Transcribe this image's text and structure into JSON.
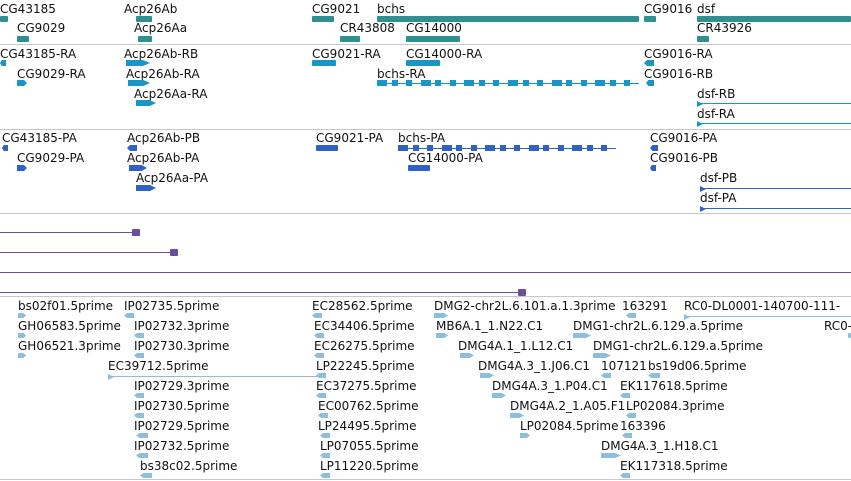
{
  "colors": {
    "gene": "#2f8f91",
    "mrna": "#1a96c6",
    "protein": "#2f62c6",
    "cds_track": "#6b4ea0",
    "est": "#8cbede",
    "separator": "#c8c8c8"
  },
  "tracks": [
    {
      "id": "gene",
      "color_key": "gene",
      "features": [
        {
          "label": "CG43185"
        },
        {
          "label": "CG9029"
        },
        {
          "label": "Acp26Ab"
        },
        {
          "label": "Acp26Aa"
        },
        {
          "label": "CG9021"
        },
        {
          "label": "CR43808"
        },
        {
          "label": "bchs"
        },
        {
          "label": "CG14000"
        },
        {
          "label": "CG9016"
        },
        {
          "label": "dsf"
        },
        {
          "label": "CR43926"
        }
      ]
    },
    {
      "id": "transcript",
      "color_key": "mrna",
      "features": [
        {
          "label": "CG43185-RA"
        },
        {
          "label": "CG9029-RA"
        },
        {
          "label": "Acp26Ab-RB"
        },
        {
          "label": "Acp26Ab-RA"
        },
        {
          "label": "Acp26Aa-RA"
        },
        {
          "label": "CG9021-RA"
        },
        {
          "label": "CG14000-RA"
        },
        {
          "label": "bchs-RA"
        },
        {
          "label": "CG9016-RA"
        },
        {
          "label": "CG9016-RB"
        },
        {
          "label": "dsf-RB"
        },
        {
          "label": "dsf-RA"
        }
      ]
    },
    {
      "id": "protein",
      "color_key": "protein",
      "features": [
        {
          "label": "CG43185-PA"
        },
        {
          "label": "CG9029-PA"
        },
        {
          "label": "Acp26Ab-PB"
        },
        {
          "label": "Acp26Ab-PA"
        },
        {
          "label": "Acp26Aa-PA"
        },
        {
          "label": "CG9021-PA"
        },
        {
          "label": "bchs-PA"
        },
        {
          "label": "CG14000-PA"
        },
        {
          "label": "CG9016-PA"
        },
        {
          "label": "CG9016-PB"
        },
        {
          "label": "dsf-PB"
        },
        {
          "label": "dsf-PA"
        }
      ]
    },
    {
      "id": "alignment",
      "color_key": "cds_track",
      "features": []
    },
    {
      "id": "est",
      "color_key": "est",
      "features": [
        {
          "label": "bs02f01.5prime"
        },
        {
          "label": "GH06583.5prime"
        },
        {
          "label": "GH06521.3prime"
        },
        {
          "label": "IP02735.5prime"
        },
        {
          "label": "IP02732.3prime"
        },
        {
          "label": "IP02730.3prime"
        },
        {
          "label": "EC39712.5prime"
        },
        {
          "label": "IP02729.3prime"
        },
        {
          "label": "IP02730.5prime"
        },
        {
          "label": "IP02729.5prime"
        },
        {
          "label": "IP02732.5prime"
        },
        {
          "label": "bs38c02.5prime"
        },
        {
          "label": "EC28562.5prime"
        },
        {
          "label": "EC34406.5prime"
        },
        {
          "label": "EC26275.5prime"
        },
        {
          "label": "LP22245.5prime"
        },
        {
          "label": "EC37275.5prime"
        },
        {
          "label": "EC00762.5prime"
        },
        {
          "label": "LP24495.5prime"
        },
        {
          "label": "LP07055.5prime"
        },
        {
          "label": "LP11220.5prime"
        },
        {
          "label": "DMG2-chr2L.6.101.a.1.3prime"
        },
        {
          "label": "MB6A.1_1.N22.C1"
        },
        {
          "label": "DMG4A.1_1.L12.C1"
        },
        {
          "label": "DMG4A.3_1.J06.C1"
        },
        {
          "label": "DMG4A.3_1.P04.C1"
        },
        {
          "label": "DMG4A.2_1.A05.F1"
        },
        {
          "label": "LP02084.5prime"
        },
        {
          "label": "DMG1-chr2L.6.129.a.5prime"
        },
        {
          "label": "DMG1-chr2L.6.129.a.5prime"
        },
        {
          "label": "163291"
        },
        {
          "label": "107121"
        },
        {
          "label": "bs19d06.5prime"
        },
        {
          "label": "EK117618.5prime"
        },
        {
          "label": "LP02084.3prime"
        },
        {
          "label": "163396"
        },
        {
          "label": "DMG4A.3_1.H18.C1"
        },
        {
          "label": "EK117318.5prime"
        },
        {
          "label": "RC0-DL0001-140700-111-"
        },
        {
          "label": "RC0-"
        }
      ]
    }
  ]
}
